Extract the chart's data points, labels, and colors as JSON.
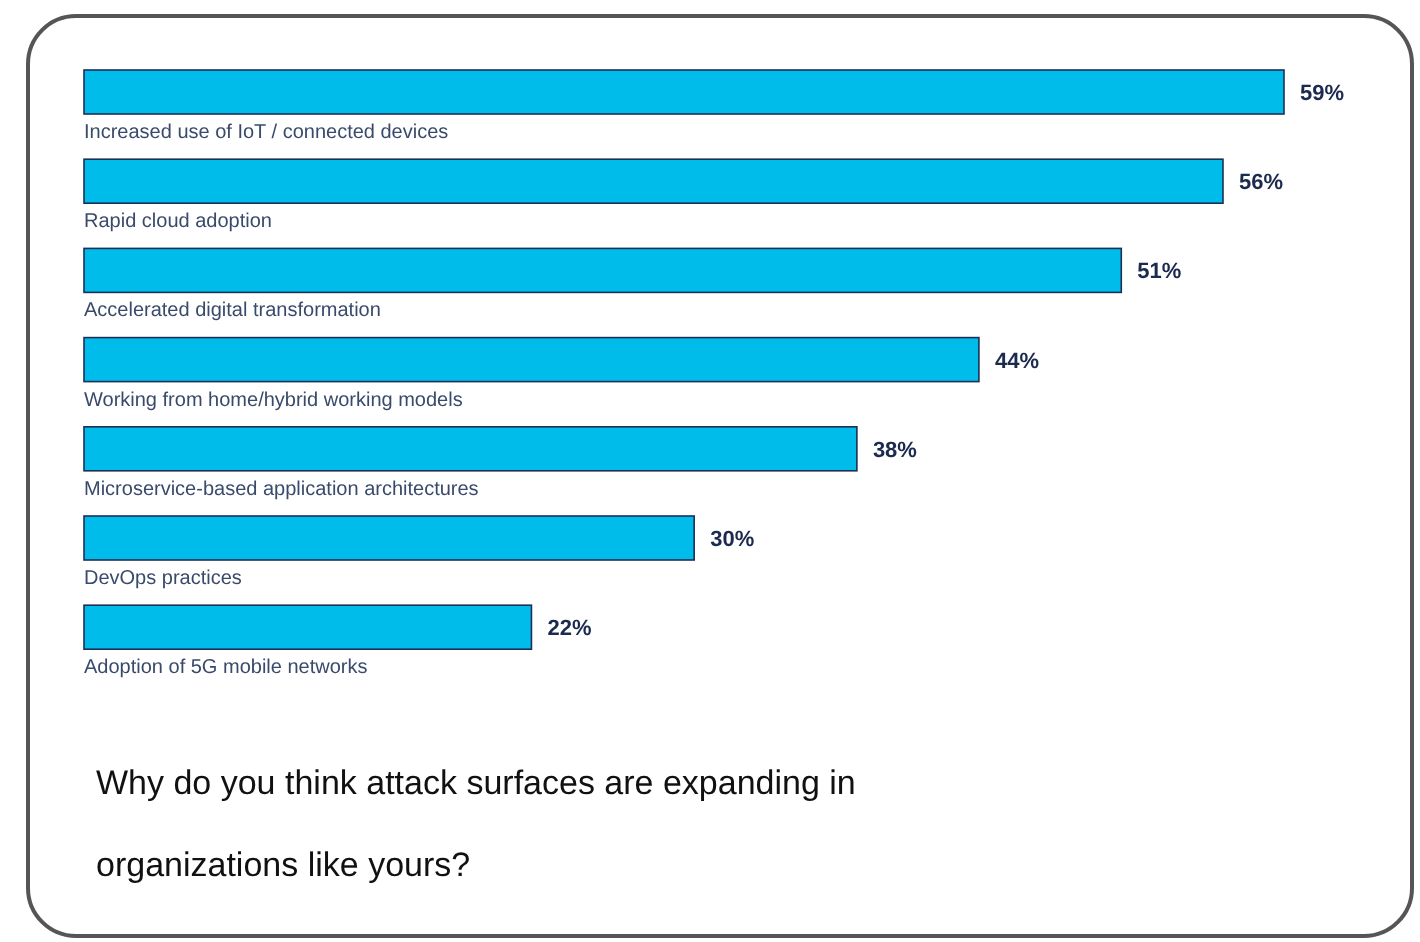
{
  "chart_data": {
    "type": "bar",
    "orientation": "horizontal",
    "title": "Why do you think attack surfaces are expanding in organizations like yours?",
    "categories": [
      "Increased use of IoT / connected devices",
      "Rapid cloud adoption",
      "Accelerated digital transformation",
      "Working from home/hybrid working models",
      "Microservice-based application architectures",
      "DevOps practices",
      "Adoption of 5G mobile networks"
    ],
    "values": [
      59,
      56,
      51,
      44,
      38,
      30,
      22
    ],
    "value_labels": [
      "59%",
      "56%",
      "51%",
      "44%",
      "38%",
      "30%",
      "22%"
    ],
    "color": "#00bceb"
  }
}
